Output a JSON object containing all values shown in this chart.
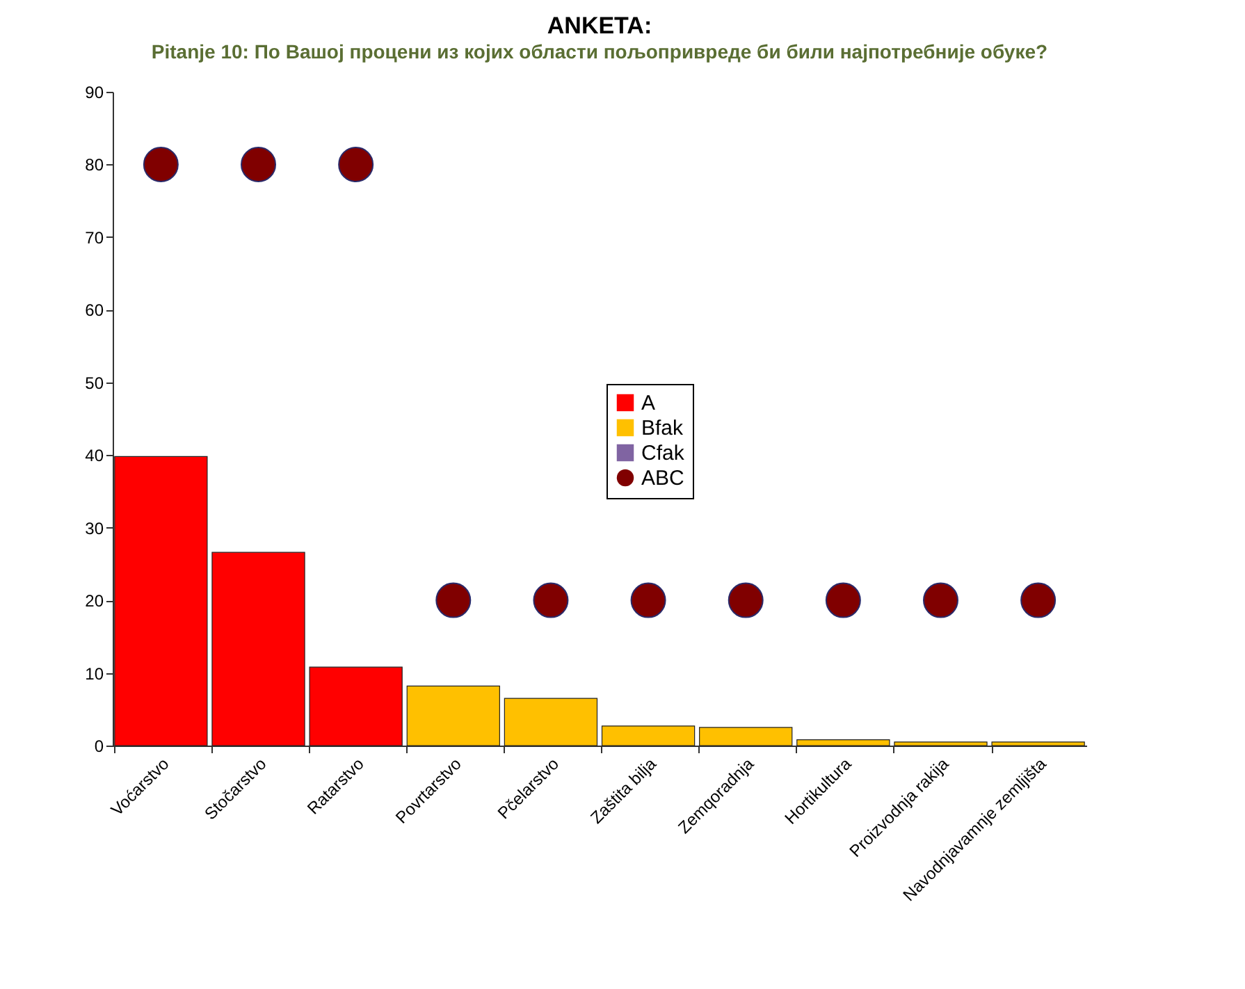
{
  "chart_data": {
    "type": "bar",
    "title": "ANKETA:",
    "subtitle": "Pitanje 10: По Вашој процени из којих области пољопривреде би били најпотребније обуке?",
    "categories": [
      "Voćarstvo",
      "Stočarstvo",
      "Ratarstvo",
      "Povrtarstvo",
      "Pčelarstvo",
      "Zaštita bilja",
      "Zemqoradnja",
      "Hortikultura",
      "Proizvodnja rakija",
      "Navodnjavamnje zemljišta"
    ],
    "series": [
      {
        "name": "A",
        "color": "#ff0000",
        "values": [
          39.8,
          26.6,
          10.8,
          null,
          null,
          null,
          null,
          null,
          null,
          null
        ]
      },
      {
        "name": "Bfak",
        "color": "#ffc000",
        "values": [
          null,
          null,
          null,
          8.2,
          6.5,
          2.7,
          2.5,
          0.8,
          0.5,
          0.5
        ]
      },
      {
        "name": "Cfak",
        "color": "#8064a2",
        "values": [
          null,
          null,
          null,
          null,
          null,
          null,
          null,
          null,
          null,
          null
        ]
      },
      {
        "name": "ABC",
        "type": "scatter",
        "color": "#800000",
        "marker": "circle",
        "values": [
          80,
          80,
          80,
          20,
          20,
          20,
          20,
          20,
          20,
          20
        ]
      }
    ],
    "stacked": true,
    "ylim": [
      0,
      90
    ],
    "yticks": [
      0,
      10,
      20,
      30,
      40,
      50,
      60,
      70,
      80,
      90
    ],
    "grid": false,
    "legend": "center"
  }
}
